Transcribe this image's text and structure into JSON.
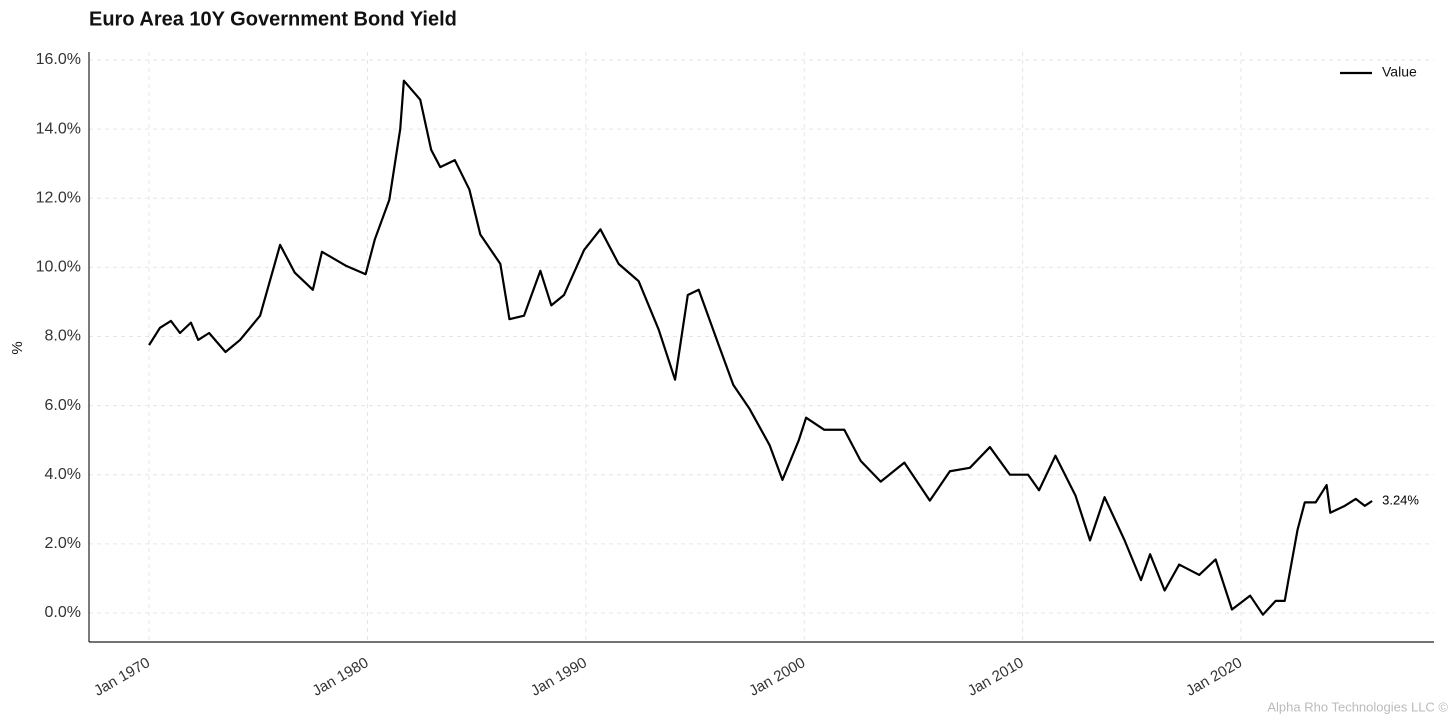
{
  "chart_data": {
    "type": "line",
    "title": "Euro Area 10Y Government Bond Yield",
    "ylabel": "%",
    "footer": "Alpha Rho Technologies LLC ©",
    "legend": "upper right",
    "grid": true,
    "last_label": "3.24%",
    "xlim": [
      "1967-04",
      "2028-11"
    ],
    "ylim": [
      -0.84,
      16.23
    ],
    "xticks": [
      {
        "value": "1970-01",
        "label": "Jan 1970"
      },
      {
        "value": "1980-01",
        "label": "Jan 1980"
      },
      {
        "value": "1990-01",
        "label": "Jan 1990"
      },
      {
        "value": "2000-01",
        "label": "Jan 2000"
      },
      {
        "value": "2010-01",
        "label": "Jan 2010"
      },
      {
        "value": "2020-01",
        "label": "Jan 2020"
      }
    ],
    "yticks": [
      {
        "value": 0,
        "label": "0.0%"
      },
      {
        "value": 2,
        "label": "2.0%"
      },
      {
        "value": 4,
        "label": "4.0%"
      },
      {
        "value": 6,
        "label": "6.0%"
      },
      {
        "value": 8,
        "label": "8.0%"
      },
      {
        "value": 10,
        "label": "10.0%"
      },
      {
        "value": 12,
        "label": "12.0%"
      },
      {
        "value": 14,
        "label": "14.0%"
      },
      {
        "value": 16,
        "label": "16.0%"
      }
    ],
    "x": [
      "1970-01",
      "1970-07",
      "1971-01",
      "1971-06",
      "1971-12",
      "1972-04",
      "1972-10",
      "1973-07",
      "1974-03",
      "1975-02",
      "1976-01",
      "1976-09",
      "1977-07",
      "1977-12",
      "1979-01",
      "1979-12",
      "1980-05",
      "1981-01",
      "1981-07",
      "1981-09",
      "1982-06",
      "1982-12",
      "1983-05",
      "1984-01",
      "1984-09",
      "1985-03",
      "1986-02",
      "1986-07",
      "1987-03",
      "1987-12",
      "1988-06",
      "1989-01",
      "1989-12",
      "1990-09",
      "1991-07",
      "1992-06",
      "1993-05",
      "1994-02",
      "1994-09",
      "1995-03",
      "1996-02",
      "1996-10",
      "1997-07",
      "1998-06",
      "1999-01",
      "1999-10",
      "2000-02",
      "2000-12",
      "2001-11",
      "2002-08",
      "2003-07",
      "2004-08",
      "2005-10",
      "2006-09",
      "2007-08",
      "2008-07",
      "2009-06",
      "2010-04",
      "2010-10",
      "2011-07",
      "2012-06",
      "2013-02",
      "2013-10",
      "2014-09",
      "2015-06",
      "2015-11",
      "2016-07",
      "2017-03",
      "2018-02",
      "2018-11",
      "2019-08",
      "2020-06",
      "2021-01",
      "2021-08",
      "2022-01",
      "2022-03",
      "2022-08",
      "2022-12",
      "2023-06",
      "2023-12",
      "2024-02",
      "2024-10",
      "2025-04",
      "2025-09",
      "2026-01"
    ],
    "series": [
      {
        "name": "Value",
        "color": "#000000",
        "values": [
          7.75,
          8.25,
          8.45,
          8.1,
          8.4,
          7.9,
          8.1,
          7.55,
          7.9,
          8.6,
          10.65,
          9.85,
          9.35,
          10.45,
          10.05,
          9.8,
          10.8,
          11.95,
          14.0,
          15.4,
          14.85,
          13.4,
          12.9,
          13.1,
          12.25,
          10.95,
          10.1,
          8.5,
          8.6,
          9.9,
          8.9,
          9.2,
          10.5,
          11.1,
          10.1,
          9.6,
          8.2,
          6.75,
          9.2,
          9.35,
          7.75,
          6.6,
          5.9,
          4.85,
          3.85,
          5.0,
          5.65,
          5.3,
          5.3,
          4.4,
          3.8,
          4.35,
          3.25,
          4.1,
          4.2,
          4.8,
          4.0,
          4.0,
          3.55,
          4.55,
          3.4,
          2.1,
          3.35,
          2.1,
          0.95,
          1.7,
          0.65,
          1.4,
          1.1,
          1.55,
          0.1,
          0.5,
          -0.05,
          0.35,
          0.35,
          0.95,
          2.4,
          3.2,
          3.2,
          3.7,
          2.9,
          3.1,
          3.3,
          3.1,
          3.24
        ]
      }
    ]
  }
}
